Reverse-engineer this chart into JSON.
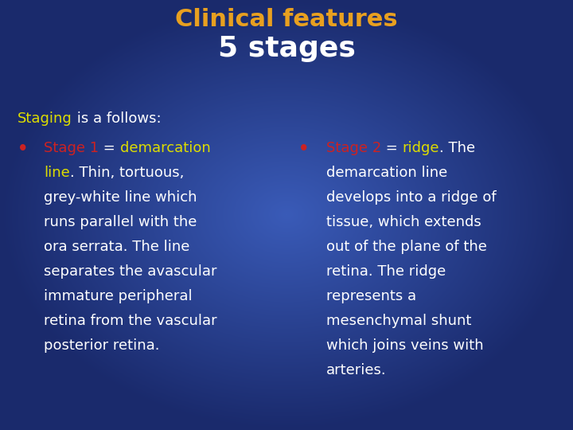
{
  "title_line1": "Clinical features",
  "title_line2": "5 stages",
  "title_color": "#E8A020",
  "subtitle_color": "#FFFFFF",
  "bg_color_center": "#3A5BB8",
  "bg_color_edge": "#1A2A6C",
  "staging_label": "Staging",
  "staging_label_color": "#DDDD00",
  "staging_rest": " is a follows:",
  "staging_rest_color": "#FFFFFF",
  "bullet_color": "#CC2222",
  "left_bullet_stage": "Stage 1",
  "left_bullet_stage_color": "#CC2222",
  "left_bullet_eq": " = ",
  "left_bullet_eq_color": "#FFFFFF",
  "left_bullet_demar": "demarcation",
  "left_bullet_demar_color": "#DDDD00",
  "left_bullet_line2a": "line",
  "left_bullet_line2a_color": "#DDDD00",
  "left_bullet_line2b": ". Thin, tortuous,",
  "left_bullet_line2b_color": "#FFFFFF",
  "left_body": [
    "grey-white line which",
    "runs parallel with the",
    "ora serrata. The line",
    "separates the avascular",
    "immature peripheral",
    "retina from the vascular",
    "posterior retina."
  ],
  "left_body_color": "#FFFFFF",
  "right_bullet_stage": "Stage 2",
  "right_bullet_stage_color": "#CC2222",
  "right_bullet_eq": " = ",
  "right_bullet_eq_color": "#FFFFFF",
  "right_bullet_ridge": "ridge",
  "right_bullet_ridge_color": "#DDDD00",
  "right_bullet_rest": ". The",
  "right_bullet_rest_color": "#FFFFFF",
  "right_body": [
    "demarcation line",
    "develops into a ridge of",
    "tissue, which extends",
    "out of the plane of the",
    "retina. The ridge",
    "represents a",
    "mesenchymal shunt",
    "which joins veins with",
    "arteries."
  ],
  "right_body_color": "#FFFFFF",
  "font_family": "DejaVu Sans",
  "title_fontsize": 22,
  "subtitle_fontsize": 26,
  "body_fontsize": 13,
  "staging_fontsize": 13,
  "figsize": [
    7.2,
    5.4
  ],
  "dpi": 100
}
